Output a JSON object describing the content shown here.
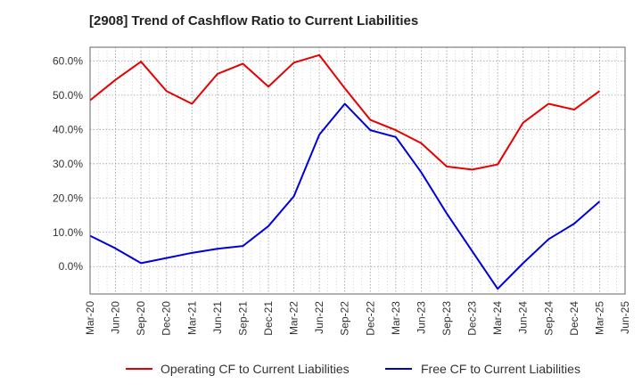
{
  "title": "[2908]  Trend of Cashflow Ratio to Current Liabilities",
  "chart_data": {
    "type": "line",
    "title": "[2908]  Trend of Cashflow Ratio to Current Liabilities",
    "xlabel": "",
    "ylabel": "",
    "categories": [
      "Mar-20",
      "Jun-20",
      "Sep-20",
      "Dec-20",
      "Mar-21",
      "Jun-21",
      "Sep-21",
      "Dec-21",
      "Mar-22",
      "Jun-22",
      "Sep-22",
      "Dec-22",
      "Mar-23",
      "Jun-23",
      "Sep-23",
      "Dec-23",
      "Mar-24",
      "Jun-24",
      "Sep-24",
      "Dec-24",
      "Mar-25",
      "Jun-25"
    ],
    "series": [
      {
        "name": "Operating CF to Current Liabilities",
        "color": "#e60000",
        "values": [
          48.5,
          54.5,
          59.8,
          51.2,
          47.5,
          56.2,
          59.2,
          52.5,
          59.5,
          61.7,
          52.0,
          42.8,
          39.8,
          36.0,
          29.2,
          28.3,
          29.8,
          42.0,
          47.5,
          45.8,
          51.2,
          null
        ]
      },
      {
        "name": "Free CF to Current Liabilities",
        "color": "#0000dd",
        "values": [
          9.0,
          5.3,
          1.0,
          2.5,
          4.0,
          5.2,
          6.0,
          11.8,
          20.5,
          38.5,
          47.5,
          39.8,
          37.8,
          27.5,
          15.5,
          4.5,
          -6.5,
          1.0,
          8.0,
          12.5,
          19.0,
          null
        ]
      }
    ],
    "ylim": [
      -8,
      64
    ],
    "yticks": [
      0,
      10,
      20,
      30,
      40,
      50,
      60
    ],
    "ytick_labels": [
      "0.0%",
      "10.0%",
      "20.0%",
      "30.0%",
      "40.0%",
      "50.0%",
      "60.0%"
    ],
    "grid": true,
    "legend_position": "bottom"
  }
}
